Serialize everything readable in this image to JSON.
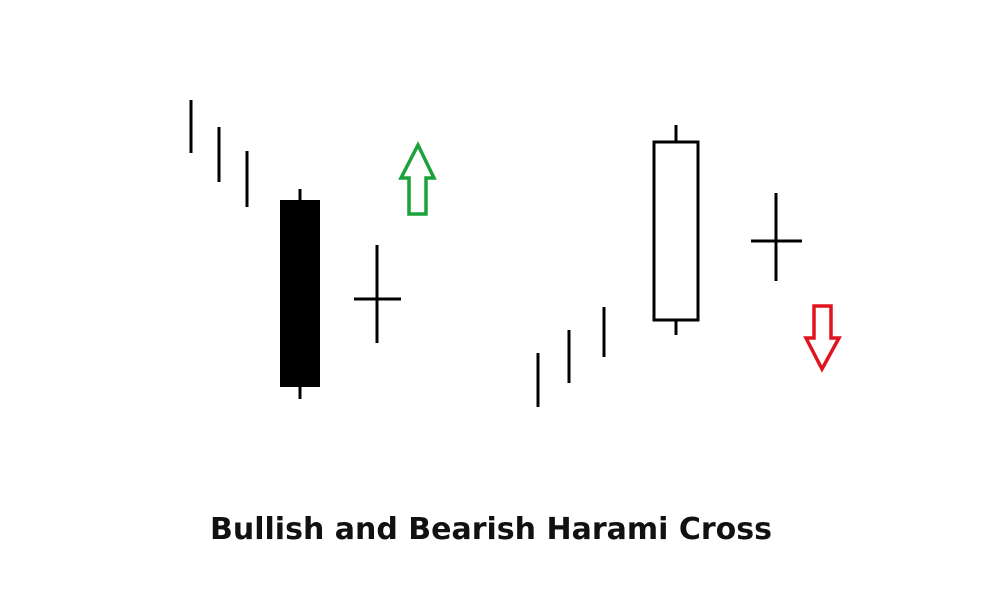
{
  "caption": "Bullish and Bearish Harami Cross",
  "colors": {
    "ink": "#000000",
    "bullish_arrow": "#1aa33a",
    "bearish_arrow": "#e0141e",
    "hollow_fill": "#ffffff"
  },
  "icons": {
    "bullish_arrow": "arrow-up-outline-icon",
    "bearish_arrow": "arrow-down-outline-icon"
  },
  "patterns": [
    {
      "name": "bullish-harami-cross",
      "trend": "down",
      "big_candle": "bearish-filled",
      "followed_by": "doji-cross",
      "signal": "up"
    },
    {
      "name": "bearish-harami-cross",
      "trend": "up",
      "big_candle": "bullish-hollow",
      "followed_by": "doji-cross",
      "signal": "down"
    }
  ]
}
